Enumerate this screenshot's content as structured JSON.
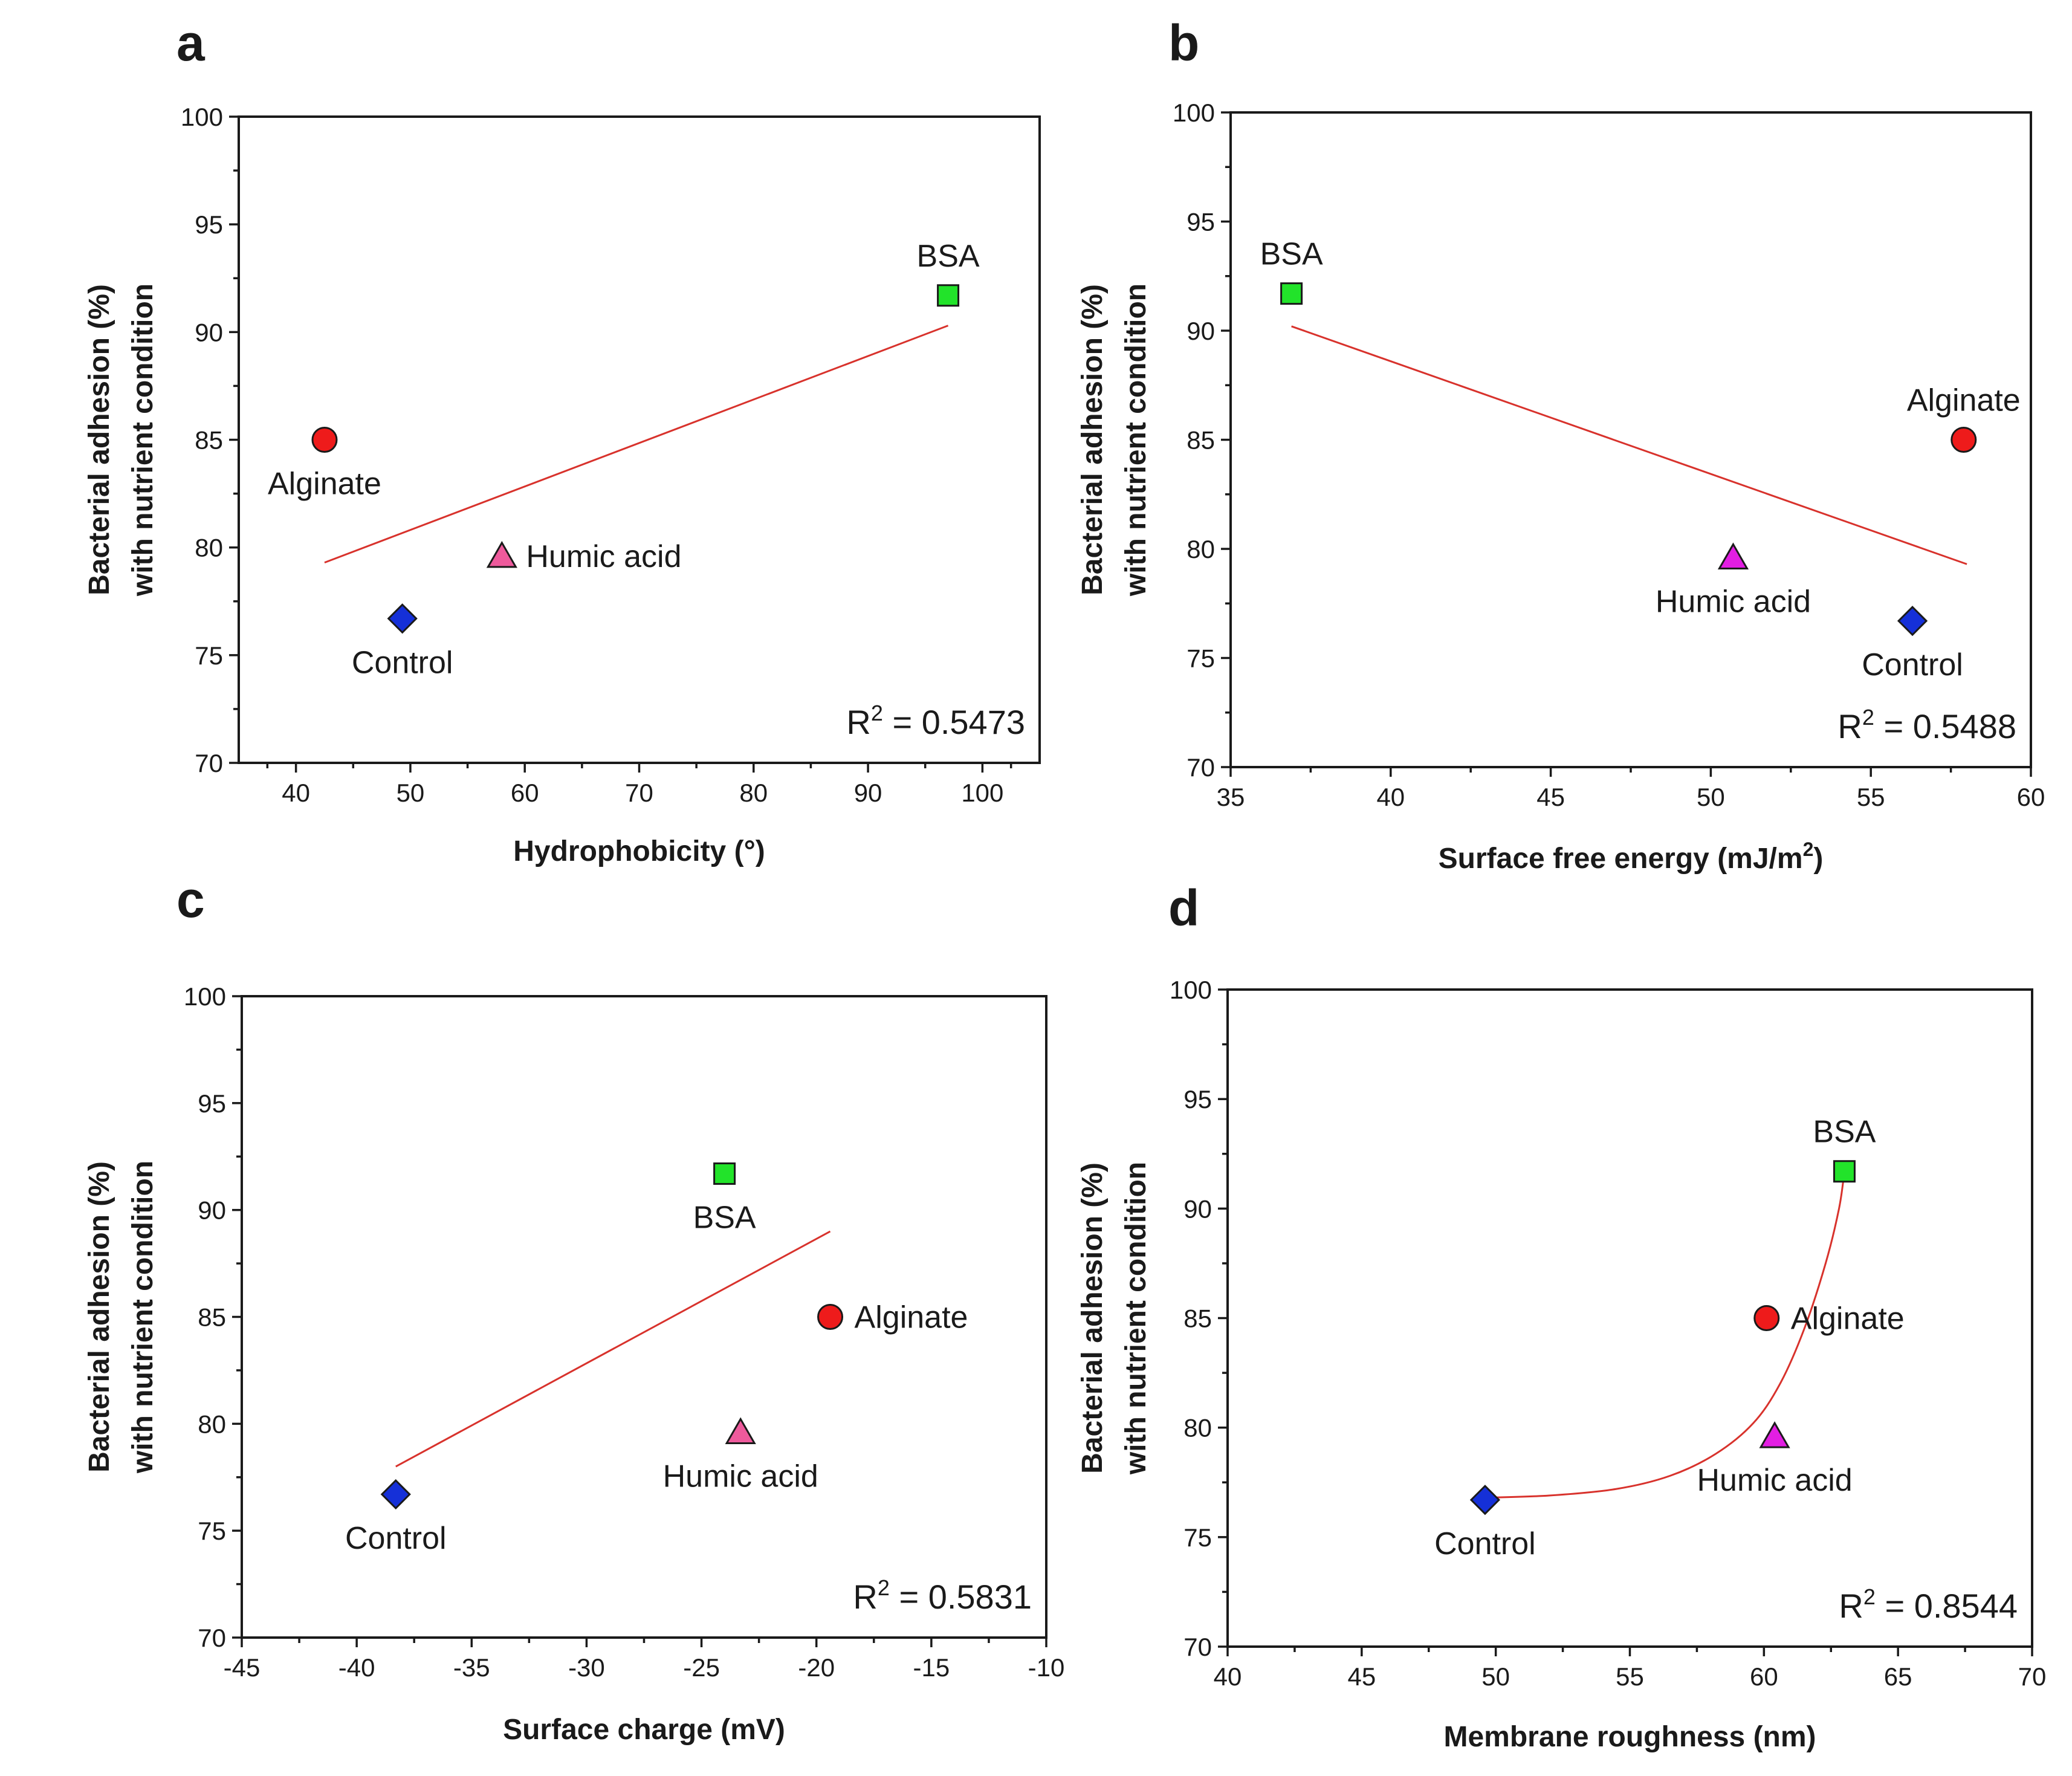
{
  "figure": {
    "y_axis_title_line1": "Bacterial adhesion (%)",
    "y_axis_title_line2": "with nutrient condition"
  },
  "colors": {
    "Control": "#1530d8",
    "Alginate": "#ee1b1b",
    "BSA": "#22e32a",
    "Humic acid_a": "#ee5a9c",
    "Humic acid_b": "#e21ee2",
    "fit_line": "#d8322c"
  },
  "chart_data": [
    {
      "panel": "a",
      "type": "scatter",
      "xlabel": "Hydrophobicity (°)",
      "ylabel": "Bacterial adhesion (%) with nutrient condition",
      "xlim": [
        35,
        105
      ],
      "ylim": [
        70,
        100
      ],
      "xticks": [
        40,
        50,
        60,
        70,
        80,
        90,
        100
      ],
      "yticks": [
        70,
        75,
        80,
        85,
        90,
        95,
        100
      ],
      "r2_prefix": "R",
      "r2_sup": "2",
      "r2_value": " = 0.5473",
      "fit": {
        "kind": "linear",
        "points": [
          [
            42.5,
            79.3
          ],
          [
            97,
            90.3
          ]
        ]
      },
      "points": [
        {
          "name": "Alginate",
          "marker": "circle",
          "x": 42.5,
          "y": 85.0,
          "color_key": "Alginate",
          "label": "Alginate",
          "label_pos": "below"
        },
        {
          "name": "Control",
          "marker": "diamond",
          "x": 49.3,
          "y": 76.7,
          "color_key": "Control",
          "label": "Control",
          "label_pos": "below"
        },
        {
          "name": "Humic acid",
          "marker": "triangle",
          "x": 58.0,
          "y": 79.6,
          "color_key": "Humic acid_a",
          "label": "Humic acid",
          "label_pos": "right"
        },
        {
          "name": "BSA",
          "marker": "square",
          "x": 97.0,
          "y": 91.7,
          "color_key": "BSA",
          "label": "BSA",
          "label_pos": "above"
        }
      ]
    },
    {
      "panel": "b",
      "type": "scatter",
      "xlabel": "Surface free energy (mJ/m",
      "xlabel_sup": "2",
      "xlabel_end": ")",
      "ylabel": "Bacterial adhesion (%) with nutrient condition",
      "xlim": [
        35,
        60
      ],
      "ylim": [
        70,
        100
      ],
      "xticks": [
        35,
        40,
        45,
        50,
        55,
        60
      ],
      "yticks": [
        70,
        75,
        80,
        85,
        90,
        95,
        100
      ],
      "r2_prefix": "R",
      "r2_sup": "2",
      "r2_value": " = 0.5488",
      "fit": {
        "kind": "linear",
        "points": [
          [
            36.9,
            90.2
          ],
          [
            58.0,
            79.3
          ]
        ]
      },
      "points": [
        {
          "name": "BSA",
          "marker": "square",
          "x": 36.9,
          "y": 91.7,
          "color_key": "BSA",
          "label": "BSA",
          "label_pos": "above"
        },
        {
          "name": "Humic acid",
          "marker": "triangle",
          "x": 50.7,
          "y": 79.6,
          "color_key": "Humic acid_b",
          "label": "Humic acid",
          "label_pos": "below"
        },
        {
          "name": "Control",
          "marker": "diamond",
          "x": 56.3,
          "y": 76.7,
          "color_key": "Control",
          "label": "Control",
          "label_pos": "below"
        },
        {
          "name": "Alginate",
          "marker": "circle",
          "x": 57.9,
          "y": 85.0,
          "color_key": "Alginate",
          "label": "Alginate",
          "label_pos": "above"
        }
      ]
    },
    {
      "panel": "c",
      "type": "scatter",
      "xlabel": "Surface charge (mV)",
      "ylabel": "Bacterial adhesion (%) with nutrient condition",
      "xlim": [
        -45,
        -10
      ],
      "ylim": [
        70,
        100
      ],
      "xticks": [
        -45,
        -40,
        -35,
        -30,
        -25,
        -20,
        -15,
        -10
      ],
      "yticks": [
        70,
        75,
        80,
        85,
        90,
        95,
        100
      ],
      "r2_prefix": "R",
      "r2_sup": "2",
      "r2_value": " = 0.5831",
      "fit": {
        "kind": "linear",
        "points": [
          [
            -38.3,
            78.0
          ],
          [
            -19.4,
            89.0
          ]
        ]
      },
      "points": [
        {
          "name": "Control",
          "marker": "diamond",
          "x": -38.3,
          "y": 76.7,
          "color_key": "Control",
          "label": "Control",
          "label_pos": "below"
        },
        {
          "name": "BSA",
          "marker": "square",
          "x": -24.0,
          "y": 91.7,
          "color_key": "BSA",
          "label": "BSA",
          "label_pos": "below"
        },
        {
          "name": "Humic acid",
          "marker": "triangle",
          "x": -23.3,
          "y": 79.6,
          "color_key": "Humic acid_a",
          "label": "Humic acid",
          "label_pos": "below"
        },
        {
          "name": "Alginate",
          "marker": "circle",
          "x": -19.4,
          "y": 85.0,
          "color_key": "Alginate",
          "label": "Alginate",
          "label_pos": "right"
        }
      ]
    },
    {
      "panel": "d",
      "type": "scatter",
      "xlabel": "Membrane roughness (nm)",
      "ylabel": "Bacterial adhesion (%) with nutrient condition",
      "xlim": [
        40,
        70
      ],
      "ylim": [
        70,
        100
      ],
      "xticks": [
        40,
        45,
        50,
        55,
        60,
        65,
        70
      ],
      "yticks": [
        70,
        75,
        80,
        85,
        90,
        95,
        100
      ],
      "r2_prefix": "R",
      "r2_sup": "2",
      "r2_value": " = 0.8544",
      "fit": {
        "kind": "curve",
        "points": [
          [
            49.6,
            76.8
          ],
          [
            52,
            76.9
          ],
          [
            54.5,
            77.2
          ],
          [
            56.5,
            77.8
          ],
          [
            58.2,
            78.8
          ],
          [
            59.6,
            80.2
          ],
          [
            60.6,
            82.0
          ],
          [
            61.5,
            84.5
          ],
          [
            62.3,
            87.5
          ],
          [
            62.8,
            90.0
          ],
          [
            63.0,
            91.7
          ]
        ]
      },
      "points": [
        {
          "name": "Control",
          "marker": "diamond",
          "x": 49.6,
          "y": 76.7,
          "color_key": "Control",
          "label": "Control",
          "label_pos": "below"
        },
        {
          "name": "Alginate",
          "marker": "circle",
          "x": 60.1,
          "y": 85.0,
          "color_key": "Alginate",
          "label": "Alginate",
          "label_pos": "right"
        },
        {
          "name": "Humic acid",
          "marker": "triangle",
          "x": 60.4,
          "y": 79.6,
          "color_key": "Humic acid_b",
          "label": "Humic acid",
          "label_pos": "below"
        },
        {
          "name": "BSA",
          "marker": "square",
          "x": 63.0,
          "y": 91.7,
          "color_key": "BSA",
          "label": "BSA",
          "label_pos": "above"
        }
      ]
    }
  ]
}
